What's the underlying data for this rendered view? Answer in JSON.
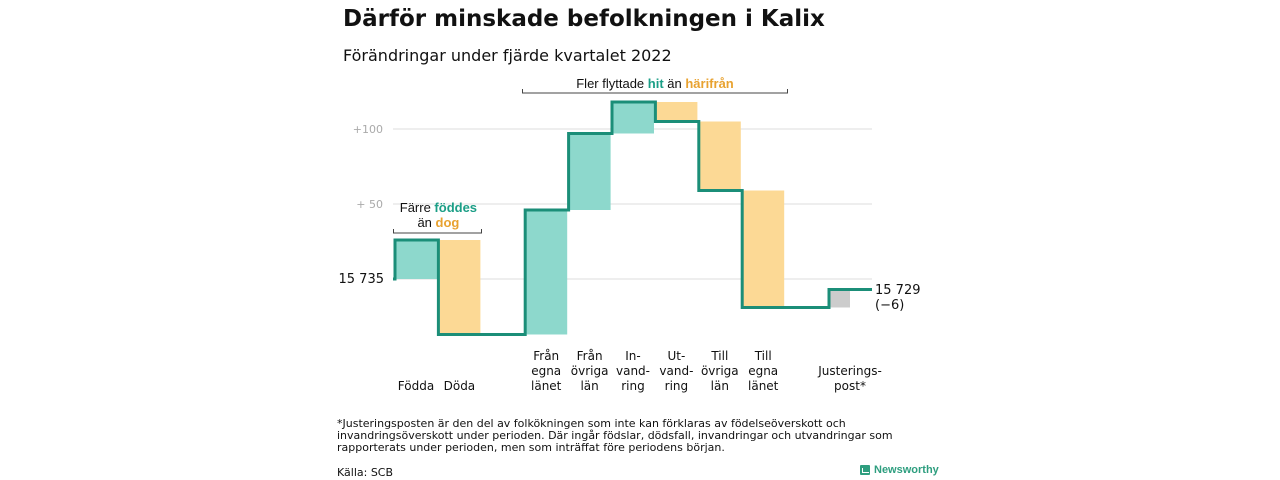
{
  "title": "Därför minskade befolkningen i Kalix",
  "subtitle": "Förändringar under fjärde kvartalet 2022",
  "footnote": "*Justeringsposten är den del av folkökningen som inte kan förklaras av födelseöverskott och invandringsöverskott under perioden. Där ingår födslar, dödsfall, invandringar och utvandringar som rapporterats under perioden, men som inträffat före periodens början.",
  "source": "Källa: SCB",
  "logo_text": "Newsworthy",
  "colors": {
    "positive": "#8dd8cc",
    "negative": "#fcd995",
    "adjustment": "#cccccc",
    "line": "#1b8e78",
    "teal_text": "#1b9e86",
    "orange_text": "#e8a230"
  },
  "chart_data": {
    "type": "waterfall",
    "start_value": 15735,
    "end_value": 15729,
    "start_label": "15 735",
    "end_label": "15 729",
    "end_change_label": "(−6)",
    "yticks": [
      {
        "value": 15835,
        "label": "+100"
      },
      {
        "value": 15785,
        "label": "+ 50"
      }
    ],
    "ylim": [
      15695,
      15875
    ],
    "grid": true,
    "steps": [
      {
        "label": [
          "Födda"
        ],
        "change": 26
      },
      {
        "label": [
          "Döda"
        ],
        "change": -63
      },
      {
        "label": [],
        "change": 0
      },
      {
        "label": [
          "Från",
          "egna",
          "länet"
        ],
        "change": 83
      },
      {
        "label": [
          "Från",
          "övriga",
          "län"
        ],
        "change": 51
      },
      {
        "label": [
          "In-",
          "vand-",
          "ring"
        ],
        "change": 21
      },
      {
        "label": [
          "Ut-",
          "vand-",
          "ring"
        ],
        "change": -13
      },
      {
        "label": [
          "Till",
          "övriga",
          "län"
        ],
        "change": -46
      },
      {
        "label": [
          "Till",
          "egna",
          "länet"
        ],
        "change": -78
      },
      {
        "label": [],
        "change": 0
      },
      {
        "label": [
          "Justerings-",
          "post*"
        ],
        "change": 12
      }
    ],
    "annotations": [
      {
        "text_parts": [
          "Färre ",
          "föddes",
          " än ",
          "dog"
        ],
        "spans": [
          0,
          1
        ]
      },
      {
        "text_parts": [
          "Fler flyttade ",
          "hit",
          " än ",
          "härifrån"
        ],
        "spans": [
          3,
          8
        ]
      }
    ]
  }
}
